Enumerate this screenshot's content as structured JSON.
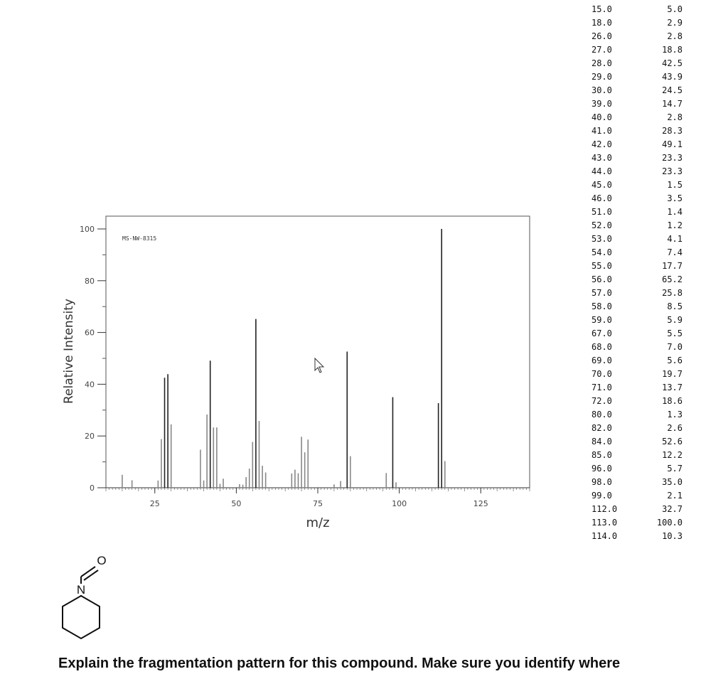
{
  "question_text": "Explain the fragmentation pattern for this compound. Make sure you identify where",
  "chart_data": {
    "type": "bar",
    "xlabel": "m/z",
    "ylabel": "Relative Intensity",
    "annotation": "MS-NW-8315",
    "xlim": [
      10,
      140
    ],
    "ylim": [
      0,
      100
    ],
    "xticks": [
      25,
      50,
      75,
      100,
      125
    ],
    "yticks": [
      0,
      20,
      40,
      60,
      80,
      100
    ],
    "peaks": [
      {
        "mz": "15.0",
        "intensity": "5.0"
      },
      {
        "mz": "18.0",
        "intensity": "2.9"
      },
      {
        "mz": "26.0",
        "intensity": "2.8"
      },
      {
        "mz": "27.0",
        "intensity": "18.8"
      },
      {
        "mz": "28.0",
        "intensity": "42.5"
      },
      {
        "mz": "29.0",
        "intensity": "43.9"
      },
      {
        "mz": "30.0",
        "intensity": "24.5"
      },
      {
        "mz": "39.0",
        "intensity": "14.7"
      },
      {
        "mz": "40.0",
        "intensity": "2.8"
      },
      {
        "mz": "41.0",
        "intensity": "28.3"
      },
      {
        "mz": "42.0",
        "intensity": "49.1"
      },
      {
        "mz": "43.0",
        "intensity": "23.3"
      },
      {
        "mz": "44.0",
        "intensity": "23.3"
      },
      {
        "mz": "45.0",
        "intensity": "1.5"
      },
      {
        "mz": "46.0",
        "intensity": "3.5"
      },
      {
        "mz": "51.0",
        "intensity": "1.4"
      },
      {
        "mz": "52.0",
        "intensity": "1.2"
      },
      {
        "mz": "53.0",
        "intensity": "4.1"
      },
      {
        "mz": "54.0",
        "intensity": "7.4"
      },
      {
        "mz": "55.0",
        "intensity": "17.7"
      },
      {
        "mz": "56.0",
        "intensity": "65.2"
      },
      {
        "mz": "57.0",
        "intensity": "25.8"
      },
      {
        "mz": "58.0",
        "intensity": "8.5"
      },
      {
        "mz": "59.0",
        "intensity": "5.9"
      },
      {
        "mz": "67.0",
        "intensity": "5.5"
      },
      {
        "mz": "68.0",
        "intensity": "7.0"
      },
      {
        "mz": "69.0",
        "intensity": "5.6"
      },
      {
        "mz": "70.0",
        "intensity": "19.7"
      },
      {
        "mz": "71.0",
        "intensity": "13.7"
      },
      {
        "mz": "72.0",
        "intensity": "18.6"
      },
      {
        "mz": "80.0",
        "intensity": "1.3"
      },
      {
        "mz": "82.0",
        "intensity": "2.6"
      },
      {
        "mz": "84.0",
        "intensity": "52.6"
      },
      {
        "mz": "85.0",
        "intensity": "12.2"
      },
      {
        "mz": "96.0",
        "intensity": "5.7"
      },
      {
        "mz": "98.0",
        "intensity": "35.0"
      },
      {
        "mz": "99.0",
        "intensity": "2.1"
      },
      {
        "mz": "112.0",
        "intensity": "32.7"
      },
      {
        "mz": "113.0",
        "intensity": "100.0"
      },
      {
        "mz": "114.0",
        "intensity": "10.3"
      }
    ]
  }
}
